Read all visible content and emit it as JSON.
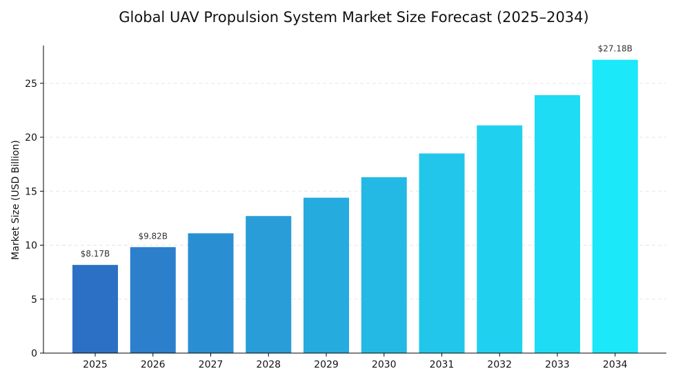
{
  "chart_data": {
    "type": "bar",
    "title": "Global UAV Propulsion System Market Size Forecast (2025–2034)",
    "xlabel": "",
    "ylabel": "Market Size (USD Billion)",
    "categories": [
      "2025",
      "2026",
      "2027",
      "2028",
      "2029",
      "2030",
      "2031",
      "2032",
      "2033",
      "2034"
    ],
    "values": [
      8.17,
      9.82,
      11.1,
      12.7,
      14.4,
      16.3,
      18.5,
      21.1,
      23.9,
      27.18
    ],
    "ylim": [
      0,
      28.5
    ],
    "yticks": [
      0,
      5,
      10,
      15,
      20,
      25
    ],
    "data_labels": [
      {
        "category": "2025",
        "text": "$8.17B"
      },
      {
        "category": "2026",
        "text": "$9.82B"
      },
      {
        "category": "2034",
        "text": "$27.18B"
      }
    ],
    "grid": "horizontal dashed",
    "colors": [
      "#2b70c5",
      "#2b7fcb",
      "#2a8fd2",
      "#289dd8",
      "#26abde",
      "#24b9e4",
      "#22c6ea",
      "#20d1ef",
      "#1edcf3",
      "#1be8f9"
    ]
  }
}
